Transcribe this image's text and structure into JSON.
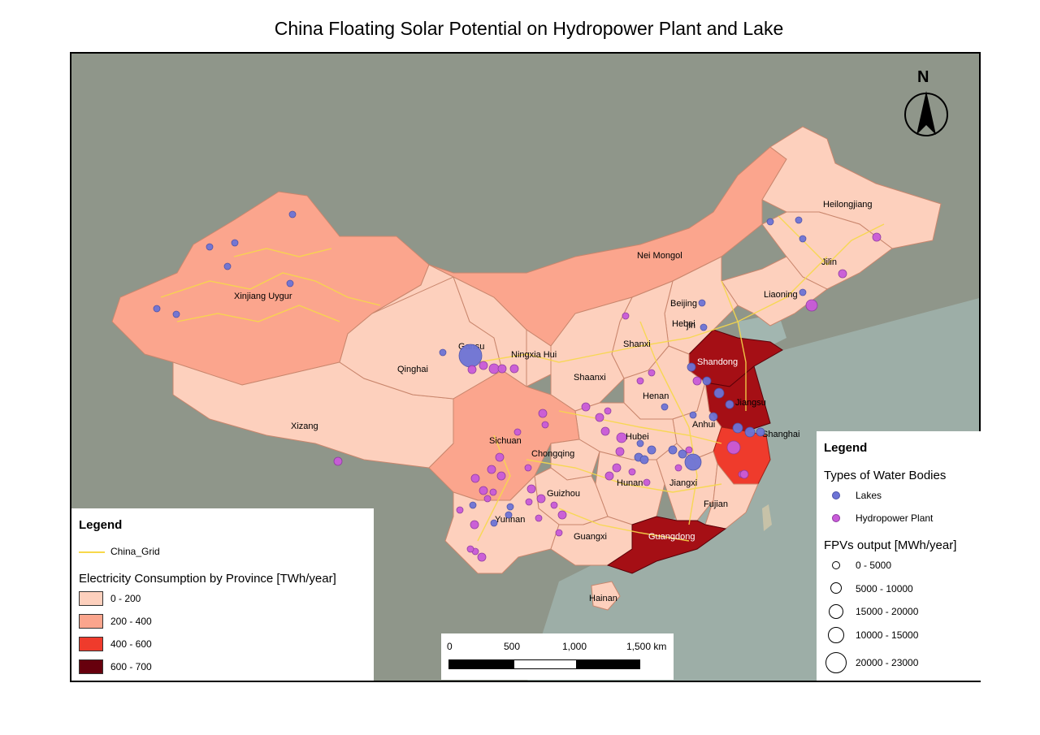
{
  "title": "China Floating Solar Potential on Hydropower Plant and Lake",
  "colors": {
    "basemap": "#8f968a",
    "sea": "#a9c3c0",
    "cons_0_200": "#fdd0bd",
    "cons_200_400": "#fba58d",
    "cons_400_600": "#ef3b2c",
    "cons_600_700": "#67000d",
    "grid": "#f7d84a",
    "lakes": "#6d74d6",
    "hydro": "#c95bd9"
  },
  "provinces": [
    "Heilongjiang",
    "Jilin",
    "Liaoning",
    "Nei Mongol",
    "Beijing",
    "Hebei",
    "Tianjin",
    "Shandong",
    "Jiangsu",
    "Shanghai",
    "Anhui",
    "Henan",
    "Shanxi",
    "Shaanxi",
    "Ningxia Hui",
    "Gansu",
    "Qinghai",
    "Xinjiang Uygur",
    "Xizang",
    "Sichuan",
    "Chongqing",
    "Hubei",
    "Hunan",
    "Jiangxi",
    "Fujian",
    "Guangdong",
    "Guangxi",
    "Guizhou",
    "Yunnan",
    "Hainan"
  ],
  "legend_left": {
    "heading": "Legend",
    "grid_label": "China_Grid",
    "consumption_title": "Electricity Consumption by Province [TWh/year]",
    "classes": [
      {
        "label": "0 - 200",
        "color": "#fdd0bd"
      },
      {
        "label": "200 - 400",
        "color": "#fba58d"
      },
      {
        "label": "400 - 600",
        "color": "#ef3b2c"
      },
      {
        "label": "600 - 700",
        "color": "#67000d"
      }
    ]
  },
  "legend_right": {
    "heading": "Legend",
    "water_title": "Types of Water Bodies",
    "water_types": [
      {
        "label": "Lakes",
        "color": "#6d74d6"
      },
      {
        "label": "Hydropower Plant",
        "color": "#c95bd9"
      }
    ],
    "output_title": "FPVs output [MWh/year]",
    "output_classes": [
      "0 - 5000",
      "5000 - 10000",
      "15000 - 20000",
      "10000 - 15000",
      "20000 - 23000"
    ]
  },
  "scalebar": {
    "ticks": [
      "0",
      "500",
      "1,000",
      "1,500 km"
    ]
  },
  "north_arrow": {
    "label": "N"
  }
}
